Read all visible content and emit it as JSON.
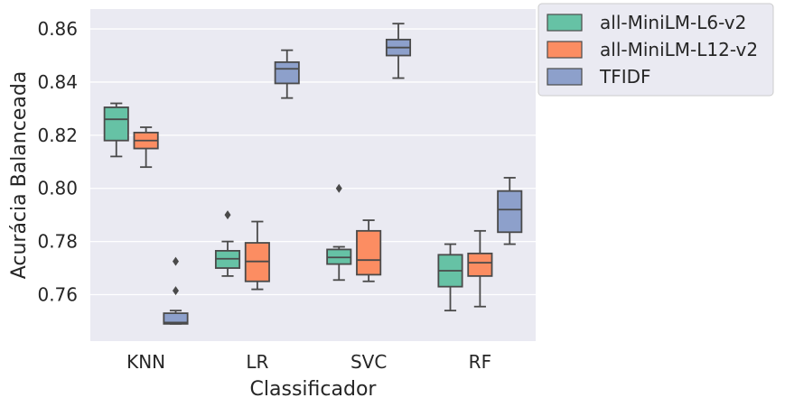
{
  "chart_data": {
    "type": "box",
    "xlabel": "Classificador",
    "ylabel": "Acurácia Balanceada",
    "ylim": [
      0.7425,
      0.8675
    ],
    "yticks": [
      0.76,
      0.78,
      0.8,
      0.82,
      0.84,
      0.86
    ],
    "ytick_labels": [
      "0.76",
      "0.78",
      "0.80",
      "0.82",
      "0.84",
      "0.86"
    ],
    "categories": [
      "KNN",
      "LR",
      "SVC",
      "RF"
    ],
    "grid": true,
    "legend_position": "outside-top-right",
    "series": [
      {
        "name": "all-MiniLM-L6-v2",
        "color": "#66c2a5",
        "boxes": [
          {
            "category": "KNN",
            "whisker_low": 0.812,
            "q1": 0.818,
            "median": 0.826,
            "q3": 0.8305,
            "whisker_high": 0.832,
            "outliers": []
          },
          {
            "category": "LR",
            "whisker_low": 0.767,
            "q1": 0.77,
            "median": 0.7735,
            "q3": 0.7765,
            "whisker_high": 0.78,
            "outliers": [
              0.79
            ]
          },
          {
            "category": "SVC",
            "whisker_low": 0.7655,
            "q1": 0.7715,
            "median": 0.774,
            "q3": 0.777,
            "whisker_high": 0.778,
            "outliers": [
              0.8
            ]
          },
          {
            "category": "RF",
            "whisker_low": 0.754,
            "q1": 0.763,
            "median": 0.769,
            "q3": 0.775,
            "whisker_high": 0.779,
            "outliers": []
          }
        ]
      },
      {
        "name": "all-MiniLM-L12-v2",
        "color": "#fc8d62",
        "boxes": [
          {
            "category": "KNN",
            "whisker_low": 0.808,
            "q1": 0.815,
            "median": 0.818,
            "q3": 0.821,
            "whisker_high": 0.823,
            "outliers": []
          },
          {
            "category": "LR",
            "whisker_low": 0.762,
            "q1": 0.765,
            "median": 0.7725,
            "q3": 0.7795,
            "whisker_high": 0.7875,
            "outliers": []
          },
          {
            "category": "SVC",
            "whisker_low": 0.765,
            "q1": 0.7675,
            "median": 0.773,
            "q3": 0.784,
            "whisker_high": 0.788,
            "outliers": []
          },
          {
            "category": "RF",
            "whisker_low": 0.7555,
            "q1": 0.767,
            "median": 0.772,
            "q3": 0.7755,
            "whisker_high": 0.784,
            "outliers": []
          }
        ]
      },
      {
        "name": "TFIDF",
        "color": "#8da0cb",
        "boxes": [
          {
            "category": "KNN",
            "whisker_low": 0.749,
            "q1": 0.749,
            "median": 0.7495,
            "q3": 0.753,
            "whisker_high": 0.754,
            "outliers": [
              0.7725,
              0.7615
            ]
          },
          {
            "category": "LR",
            "whisker_low": 0.834,
            "q1": 0.8395,
            "median": 0.845,
            "q3": 0.8475,
            "whisker_high": 0.852,
            "outliers": []
          },
          {
            "category": "SVC",
            "whisker_low": 0.8415,
            "q1": 0.85,
            "median": 0.853,
            "q3": 0.856,
            "whisker_high": 0.862,
            "outliers": []
          },
          {
            "category": "RF",
            "whisker_low": 0.779,
            "q1": 0.7835,
            "median": 0.792,
            "q3": 0.799,
            "whisker_high": 0.804,
            "outliers": []
          }
        ]
      }
    ],
    "colors": {
      "plot_background": "#eaeaf2",
      "grid": "#ffffff",
      "box_edge": "#4a4a4a",
      "legend_background": "#eaeaf2",
      "legend_border": "#cccccc"
    }
  }
}
